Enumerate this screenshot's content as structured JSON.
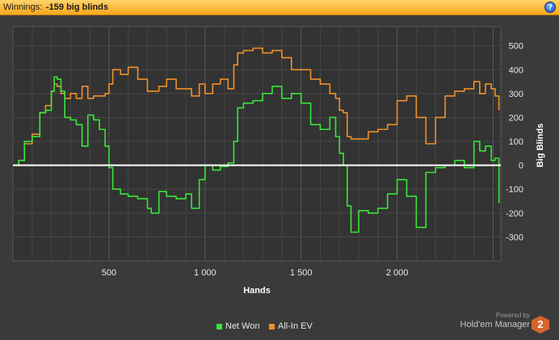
{
  "header": {
    "label": "Winnings:",
    "value": "-159 big blinds",
    "help_icon": "help-icon",
    "help_glyph": "?"
  },
  "chart_data": {
    "type": "line",
    "xlabel": "Hands",
    "ylabel": "Big Blinds",
    "xlim": [
      0,
      2540
    ],
    "ylim": [
      -400,
      580
    ],
    "xticks": [
      500,
      1000,
      1500,
      2000
    ],
    "xtick_labels": [
      "500",
      "1 000",
      "1 500",
      "2 000"
    ],
    "yticks": [
      500,
      400,
      300,
      200,
      100,
      0,
      -100,
      -200,
      -300
    ],
    "yticklabels": [
      "500",
      "400",
      "300",
      "200",
      "100",
      "0",
      "-100",
      "-200",
      "-300"
    ],
    "grid": true,
    "legend_position": "bottom",
    "series": [
      {
        "name": "Net Won",
        "color": "#39e639",
        "x": [
          0,
          30,
          60,
          100,
          140,
          170,
          200,
          215,
          230,
          250,
          270,
          300,
          330,
          360,
          390,
          420,
          450,
          480,
          500,
          520,
          560,
          600,
          650,
          700,
          720,
          760,
          800,
          850,
          900,
          930,
          970,
          1000,
          1040,
          1080,
          1120,
          1150,
          1170,
          1200,
          1250,
          1300,
          1350,
          1400,
          1450,
          1500,
          1550,
          1600,
          1650,
          1680,
          1700,
          1720,
          1740,
          1760,
          1800,
          1850,
          1900,
          1950,
          2000,
          2050,
          2100,
          2150,
          2200,
          2250,
          2300,
          2350,
          2400,
          2430,
          2460,
          2490,
          2510,
          2530
        ],
        "y": [
          0,
          20,
          100,
          120,
          220,
          230,
          310,
          370,
          360,
          310,
          200,
          190,
          170,
          80,
          210,
          190,
          150,
          80,
          -10,
          -100,
          -120,
          -130,
          -140,
          -180,
          -200,
          -110,
          -130,
          -140,
          -120,
          -180,
          -60,
          0,
          -20,
          -5,
          10,
          100,
          240,
          260,
          270,
          300,
          330,
          280,
          300,
          260,
          170,
          150,
          200,
          120,
          50,
          0,
          -170,
          -280,
          -190,
          -200,
          -180,
          -120,
          -60,
          -130,
          -260,
          -30,
          -10,
          0,
          20,
          -10,
          100,
          60,
          80,
          20,
          30,
          -159
        ]
      },
      {
        "name": "All-In EV",
        "color": "#f0902a",
        "x": [
          0,
          30,
          60,
          100,
          140,
          170,
          200,
          215,
          230,
          250,
          270,
          300,
          330,
          360,
          390,
          420,
          450,
          480,
          500,
          520,
          560,
          600,
          650,
          700,
          720,
          760,
          800,
          850,
          900,
          930,
          970,
          1000,
          1040,
          1080,
          1120,
          1150,
          1170,
          1200,
          1250,
          1300,
          1350,
          1400,
          1450,
          1500,
          1550,
          1600,
          1650,
          1680,
          1700,
          1720,
          1740,
          1760,
          1800,
          1850,
          1900,
          1950,
          2000,
          2050,
          2100,
          2150,
          2200,
          2250,
          2300,
          2350,
          2400,
          2430,
          2460,
          2490,
          2510,
          2530
        ],
        "y": [
          0,
          20,
          90,
          130,
          220,
          250,
          310,
          340,
          330,
          300,
          280,
          300,
          280,
          330,
          280,
          290,
          290,
          300,
          340,
          400,
          380,
          410,
          360,
          310,
          310,
          330,
          360,
          320,
          320,
          290,
          340,
          300,
          340,
          360,
          320,
          420,
          470,
          480,
          490,
          470,
          480,
          450,
          400,
          400,
          360,
          340,
          300,
          280,
          230,
          220,
          120,
          110,
          110,
          140,
          150,
          170,
          270,
          290,
          200,
          90,
          200,
          290,
          310,
          320,
          350,
          300,
          340,
          320,
          290,
          230
        ]
      }
    ]
  },
  "legend": {
    "net_won": "Net Won",
    "all_in_ev": "All-In EV",
    "net_won_color": "#39e639",
    "all_in_ev_color": "#f0902a"
  },
  "branding": {
    "powered_by": "Powered by",
    "name": "Hold'em Manager",
    "logo_glyph": "2"
  }
}
